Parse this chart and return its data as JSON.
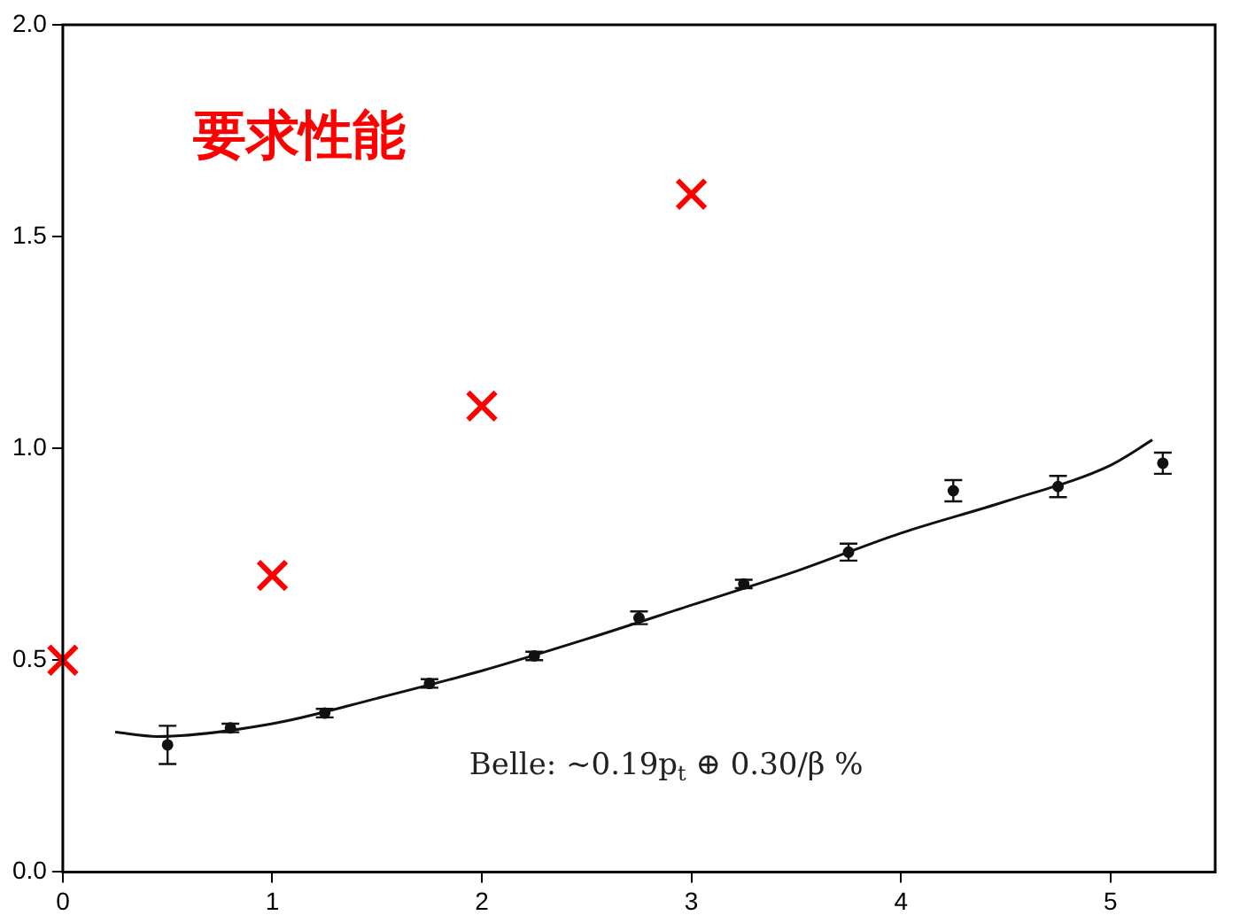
{
  "chart_data": {
    "type": "scatter",
    "xlim": [
      0,
      5.5
    ],
    "ylim": [
      0,
      2
    ],
    "xticks": [
      0,
      1,
      2,
      3,
      4,
      5
    ],
    "yticks": [
      {
        "value": 0,
        "label": "0.0"
      },
      0.5,
      {
        "value": 1,
        "label": "1.0"
      },
      1.5,
      {
        "value": 2,
        "label": "2.0"
      }
    ],
    "grid": false,
    "legend": false,
    "series": [
      {
        "name": "要求性能",
        "color": "#ff0000",
        "marker": "cross",
        "x": [
          0,
          1,
          2,
          3
        ],
        "values": [
          0.5,
          0.7,
          1.1,
          1.6
        ]
      },
      {
        "color": "#111111",
        "marker": "circle",
        "x": [
          0.5,
          0.8,
          1.25,
          1.75,
          2.25,
          2.75,
          3.25,
          3.75,
          4.25,
          4.75,
          5.25
        ],
        "values": [
          0.3,
          0.34,
          0.375,
          0.445,
          0.51,
          0.6,
          0.68,
          0.755,
          0.9,
          0.91,
          0.965
        ],
        "errors": [
          0.045,
          0.01,
          0.01,
          0.01,
          0.01,
          0.015,
          0.01,
          0.02,
          0.025,
          0.025,
          0.025
        ]
      },
      {
        "name": "Belle: ~0.19p$_{t}$ ⊕ 0.30/β %",
        "type": "line",
        "color": "#111111",
        "marker": "none",
        "x": [
          0.25,
          0.45,
          1,
          1.5,
          2,
          2.5,
          3,
          3.5,
          4,
          4.5,
          5,
          5.2
        ],
        "values": [
          0.33,
          0.32,
          0.35,
          0.41,
          0.475,
          0.55,
          0.63,
          0.71,
          0.8,
          0.875,
          0.96,
          1.02
        ]
      }
    ]
  }
}
